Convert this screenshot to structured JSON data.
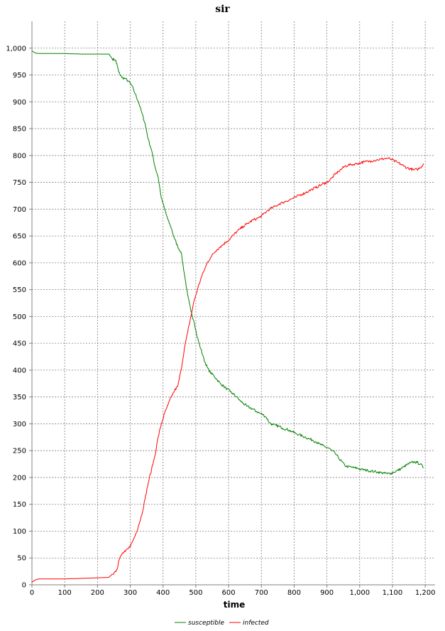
{
  "chart_data": {
    "type": "line",
    "title": "sir",
    "xlabel": "time",
    "ylabel": "",
    "xlim": [
      0,
      1230
    ],
    "ylim": [
      0,
      1050
    ],
    "x_ticks": [
      0,
      100,
      200,
      300,
      400,
      500,
      600,
      700,
      800,
      900,
      1000,
      1100,
      1200
    ],
    "x_tick_labels": [
      "0",
      "100",
      "200",
      "300",
      "400",
      "500",
      "600",
      "700",
      "800",
      "900",
      "1,000",
      "1,100",
      "1,200"
    ],
    "y_ticks": [
      0,
      50,
      100,
      150,
      200,
      250,
      300,
      350,
      400,
      450,
      500,
      550,
      600,
      650,
      700,
      750,
      800,
      850,
      900,
      950,
      1000
    ],
    "y_tick_labels": [
      "0",
      "50",
      "100",
      "150",
      "200",
      "250",
      "300",
      "350",
      "400",
      "450",
      "500",
      "550",
      "600",
      "650",
      "700",
      "750",
      "800",
      "850",
      "900",
      "950",
      "1,000"
    ],
    "grid": true,
    "legend_position": "bottom-center",
    "series": [
      {
        "name": "susceptible",
        "color": "#008000",
        "points": [
          [
            0,
            995
          ],
          [
            10,
            991
          ],
          [
            20,
            990
          ],
          [
            50,
            990
          ],
          [
            100,
            990
          ],
          [
            150,
            989
          ],
          [
            200,
            989
          ],
          [
            235,
            989
          ],
          [
            245,
            980
          ],
          [
            255,
            978
          ],
          [
            260,
            968
          ],
          [
            265,
            955
          ],
          [
            275,
            945
          ],
          [
            285,
            943
          ],
          [
            295,
            938
          ],
          [
            305,
            930
          ],
          [
            315,
            915
          ],
          [
            325,
            900
          ],
          [
            335,
            880
          ],
          [
            345,
            860
          ],
          [
            355,
            830
          ],
          [
            365,
            810
          ],
          [
            375,
            780
          ],
          [
            385,
            760
          ],
          [
            395,
            720
          ],
          [
            405,
            700
          ],
          [
            415,
            680
          ],
          [
            425,
            665
          ],
          [
            435,
            645
          ],
          [
            445,
            630
          ],
          [
            455,
            620
          ],
          [
            465,
            580
          ],
          [
            475,
            540
          ],
          [
            485,
            510
          ],
          [
            495,
            490
          ],
          [
            505,
            460
          ],
          [
            515,
            440
          ],
          [
            525,
            420
          ],
          [
            535,
            405
          ],
          [
            545,
            395
          ],
          [
            555,
            390
          ],
          [
            565,
            382
          ],
          [
            575,
            375
          ],
          [
            585,
            370
          ],
          [
            595,
            365
          ],
          [
            605,
            360
          ],
          [
            615,
            355
          ],
          [
            625,
            350
          ],
          [
            635,
            343
          ],
          [
            645,
            338
          ],
          [
            655,
            333
          ],
          [
            665,
            330
          ],
          [
            675,
            327
          ],
          [
            685,
            323
          ],
          [
            695,
            320
          ],
          [
            705,
            317
          ],
          [
            715,
            312
          ],
          [
            725,
            302
          ],
          [
            735,
            298
          ],
          [
            745,
            297
          ],
          [
            755,
            295
          ],
          [
            765,
            292
          ],
          [
            775,
            290
          ],
          [
            785,
            288
          ],
          [
            795,
            285
          ],
          [
            805,
            282
          ],
          [
            815,
            280
          ],
          [
            825,
            277
          ],
          [
            835,
            275
          ],
          [
            845,
            272
          ],
          [
            855,
            270
          ],
          [
            865,
            267
          ],
          [
            875,
            263
          ],
          [
            885,
            260
          ],
          [
            895,
            257
          ],
          [
            905,
            255
          ],
          [
            915,
            250
          ],
          [
            925,
            245
          ],
          [
            935,
            237
          ],
          [
            945,
            230
          ],
          [
            955,
            222
          ],
          [
            965,
            220
          ],
          [
            975,
            219
          ],
          [
            985,
            218
          ],
          [
            995,
            217
          ],
          [
            1005,
            215
          ],
          [
            1015,
            214
          ],
          [
            1025,
            213
          ],
          [
            1035,
            212
          ],
          [
            1045,
            211
          ],
          [
            1055,
            210
          ],
          [
            1065,
            209
          ],
          [
            1075,
            208
          ],
          [
            1085,
            207
          ],
          [
            1095,
            208
          ],
          [
            1105,
            210
          ],
          [
            1115,
            213
          ],
          [
            1125,
            216
          ],
          [
            1135,
            220
          ],
          [
            1145,
            224
          ],
          [
            1155,
            227
          ],
          [
            1165,
            229
          ],
          [
            1175,
            228
          ],
          [
            1185,
            225
          ],
          [
            1195,
            218
          ]
        ]
      },
      {
        "name": "infected",
        "color": "#ff0000",
        "points": [
          [
            0,
            5
          ],
          [
            10,
            9
          ],
          [
            20,
            11
          ],
          [
            50,
            11
          ],
          [
            100,
            11
          ],
          [
            150,
            12
          ],
          [
            200,
            13
          ],
          [
            235,
            14
          ],
          [
            245,
            20
          ],
          [
            255,
            25
          ],
          [
            260,
            30
          ],
          [
            265,
            45
          ],
          [
            275,
            58
          ],
          [
            285,
            62
          ],
          [
            295,
            68
          ],
          [
            305,
            78
          ],
          [
            315,
            92
          ],
          [
            325,
            110
          ],
          [
            335,
            130
          ],
          [
            345,
            160
          ],
          [
            355,
            190
          ],
          [
            365,
            215
          ],
          [
            375,
            240
          ],
          [
            385,
            275
          ],
          [
            395,
            300
          ],
          [
            405,
            320
          ],
          [
            415,
            335
          ],
          [
            425,
            350
          ],
          [
            435,
            362
          ],
          [
            445,
            370
          ],
          [
            455,
            400
          ],
          [
            465,
            440
          ],
          [
            475,
            470
          ],
          [
            485,
            500
          ],
          [
            495,
            530
          ],
          [
            505,
            550
          ],
          [
            515,
            570
          ],
          [
            525,
            585
          ],
          [
            535,
            600
          ],
          [
            545,
            610
          ],
          [
            555,
            618
          ],
          [
            565,
            625
          ],
          [
            575,
            630
          ],
          [
            585,
            635
          ],
          [
            595,
            640
          ],
          [
            605,
            645
          ],
          [
            615,
            652
          ],
          [
            625,
            658
          ],
          [
            635,
            663
          ],
          [
            645,
            668
          ],
          [
            655,
            672
          ],
          [
            665,
            676
          ],
          [
            675,
            680
          ],
          [
            685,
            682
          ],
          [
            695,
            685
          ],
          [
            705,
            690
          ],
          [
            715,
            695
          ],
          [
            725,
            700
          ],
          [
            735,
            703
          ],
          [
            745,
            706
          ],
          [
            755,
            710
          ],
          [
            765,
            712
          ],
          [
            775,
            715
          ],
          [
            785,
            717
          ],
          [
            795,
            720
          ],
          [
            805,
            722
          ],
          [
            815,
            726
          ],
          [
            825,
            728
          ],
          [
            835,
            731
          ],
          [
            845,
            734
          ],
          [
            855,
            737
          ],
          [
            865,
            740
          ],
          [
            875,
            743
          ],
          [
            885,
            746
          ],
          [
            895,
            749
          ],
          [
            905,
            752
          ],
          [
            915,
            758
          ],
          [
            925,
            765
          ],
          [
            935,
            770
          ],
          [
            945,
            775
          ],
          [
            955,
            780
          ],
          [
            965,
            782
          ],
          [
            975,
            783
          ],
          [
            985,
            784
          ],
          [
            995,
            785
          ],
          [
            1005,
            787
          ],
          [
            1015,
            788
          ],
          [
            1025,
            789
          ],
          [
            1035,
            790
          ],
          [
            1045,
            791
          ],
          [
            1055,
            792
          ],
          [
            1065,
            793
          ],
          [
            1075,
            794
          ],
          [
            1085,
            795
          ],
          [
            1095,
            793
          ],
          [
            1105,
            790
          ],
          [
            1115,
            787
          ],
          [
            1125,
            784
          ],
          [
            1135,
            780
          ],
          [
            1145,
            777
          ],
          [
            1155,
            775
          ],
          [
            1165,
            773
          ],
          [
            1175,
            774
          ],
          [
            1185,
            777
          ],
          [
            1195,
            785
          ]
        ]
      }
    ]
  }
}
